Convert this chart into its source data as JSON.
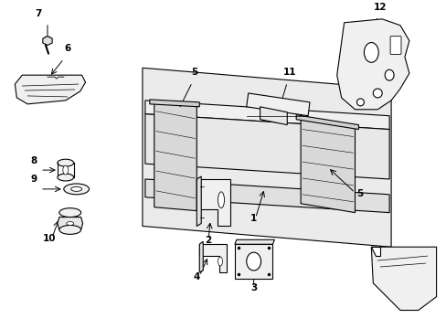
{
  "bg_color": "#ffffff",
  "line_color": "#000000",
  "label_color": "#000000",
  "lw": 0.8,
  "lfs": 7.5
}
